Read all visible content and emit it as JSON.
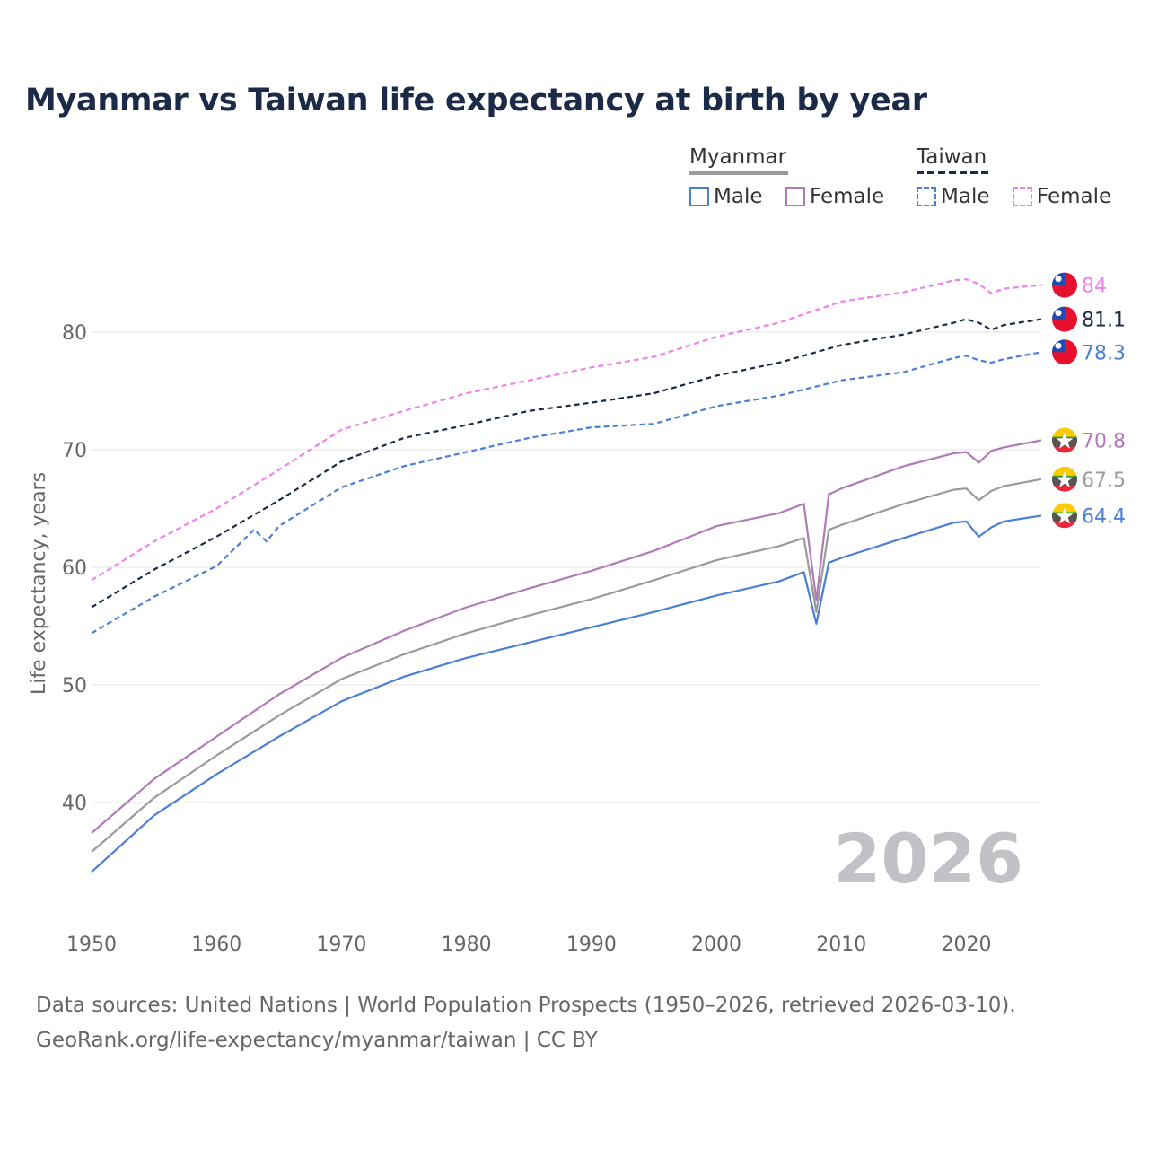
{
  "title": "Myanmar vs Taiwan life expectancy at birth by year",
  "legend": {
    "groups": [
      {
        "name": "Myanmar",
        "items": [
          "Male",
          "Female"
        ]
      },
      {
        "name": "Taiwan",
        "items": [
          "Male",
          "Female"
        ]
      }
    ]
  },
  "colors": {
    "male": "#4a7fd4",
    "female": "#b07ab8",
    "myanmar_total": "#9a9a9a",
    "taiwan_total": "#1b2a47",
    "taiwan_female": "#ee82ee",
    "year_watermark": "#c2c2c6"
  },
  "current_year": "2026",
  "source_line1": "Data sources: United Nations | World Population Prospects (1950–2026, retrieved 2026-03-10).",
  "source_line2": "GeoRank.org/life-expectancy/myanmar/taiwan | CC BY",
  "chart_data": {
    "type": "line",
    "ylabel": "Life expectancy, years",
    "xlabel": "",
    "xlim": [
      1950,
      2026
    ],
    "ylim": [
      32,
      90
    ],
    "x_ticks": [
      1950,
      1960,
      1970,
      1980,
      1990,
      2000,
      2010,
      2020
    ],
    "y_ticks": [
      40,
      50,
      60,
      70,
      80
    ],
    "series": [
      {
        "name": "Taiwan Female",
        "country": "Taiwan",
        "sex": "Female",
        "style": "dashed",
        "color": "#ee82ee",
        "label": "84",
        "flag": "taiwan",
        "points": [
          [
            1950,
            58.9
          ],
          [
            1955,
            62.2
          ],
          [
            1960,
            65.0
          ],
          [
            1965,
            68.3
          ],
          [
            1970,
            71.7
          ],
          [
            1975,
            73.3
          ],
          [
            1980,
            74.8
          ],
          [
            1985,
            75.9
          ],
          [
            1990,
            77.0
          ],
          [
            1995,
            77.9
          ],
          [
            2000,
            79.6
          ],
          [
            2005,
            80.8
          ],
          [
            2010,
            82.6
          ],
          [
            2015,
            83.4
          ],
          [
            2019,
            84.4
          ],
          [
            2020,
            84.5
          ],
          [
            2021,
            84.1
          ],
          [
            2022,
            83.3
          ],
          [
            2023,
            83.7
          ],
          [
            2026,
            84.0
          ]
        ]
      },
      {
        "name": "Taiwan Total",
        "country": "Taiwan",
        "sex": "Total",
        "style": "dashed",
        "color": "#1b2a47",
        "label": "81.1",
        "flag": "taiwan",
        "points": [
          [
            1950,
            56.6
          ],
          [
            1955,
            59.8
          ],
          [
            1960,
            62.6
          ],
          [
            1965,
            65.7
          ],
          [
            1970,
            69.0
          ],
          [
            1975,
            71.0
          ],
          [
            1980,
            72.1
          ],
          [
            1985,
            73.3
          ],
          [
            1990,
            74.0
          ],
          [
            1995,
            74.8
          ],
          [
            2000,
            76.3
          ],
          [
            2005,
            77.4
          ],
          [
            2010,
            78.9
          ],
          [
            2015,
            79.8
          ],
          [
            2019,
            80.8
          ],
          [
            2020,
            81.1
          ],
          [
            2021,
            80.8
          ],
          [
            2022,
            80.2
          ],
          [
            2023,
            80.6
          ],
          [
            2026,
            81.1
          ]
        ]
      },
      {
        "name": "Taiwan Male",
        "country": "Taiwan",
        "sex": "Male",
        "style": "dashed",
        "color": "#4a7fd4",
        "label": "78.3",
        "flag": "taiwan",
        "points": [
          [
            1950,
            54.4
          ],
          [
            1955,
            57.5
          ],
          [
            1960,
            60.1
          ],
          [
            1963,
            63.2
          ],
          [
            1964,
            62.2
          ],
          [
            1965,
            63.5
          ],
          [
            1970,
            66.8
          ],
          [
            1975,
            68.6
          ],
          [
            1980,
            69.8
          ],
          [
            1985,
            71.0
          ],
          [
            1990,
            71.9
          ],
          [
            1995,
            72.2
          ],
          [
            2000,
            73.7
          ],
          [
            2005,
            74.6
          ],
          [
            2010,
            75.9
          ],
          [
            2015,
            76.6
          ],
          [
            2019,
            77.8
          ],
          [
            2020,
            78.0
          ],
          [
            2021,
            77.6
          ],
          [
            2022,
            77.4
          ],
          [
            2023,
            77.7
          ],
          [
            2026,
            78.3
          ]
        ]
      },
      {
        "name": "Myanmar Female",
        "country": "Myanmar",
        "sex": "Female",
        "style": "solid",
        "color": "#b07ab8",
        "label": "70.8",
        "flag": "myanmar",
        "points": [
          [
            1950,
            37.4
          ],
          [
            1955,
            42.0
          ],
          [
            1960,
            45.6
          ],
          [
            1965,
            49.2
          ],
          [
            1970,
            52.3
          ],
          [
            1975,
            54.6
          ],
          [
            1980,
            56.6
          ],
          [
            1985,
            58.2
          ],
          [
            1990,
            59.7
          ],
          [
            1995,
            61.4
          ],
          [
            2000,
            63.5
          ],
          [
            2005,
            64.6
          ],
          [
            2007,
            65.4
          ],
          [
            2008,
            57.2
          ],
          [
            2009,
            66.2
          ],
          [
            2010,
            66.7
          ],
          [
            2015,
            68.6
          ],
          [
            2019,
            69.7
          ],
          [
            2020,
            69.8
          ],
          [
            2021,
            68.9
          ],
          [
            2022,
            69.9
          ],
          [
            2023,
            70.2
          ],
          [
            2026,
            70.8
          ]
        ]
      },
      {
        "name": "Myanmar Total",
        "country": "Myanmar",
        "sex": "Total",
        "style": "solid",
        "color": "#9a9a9a",
        "label": "67.5",
        "flag": "myanmar",
        "points": [
          [
            1950,
            35.8
          ],
          [
            1955,
            40.4
          ],
          [
            1960,
            44.0
          ],
          [
            1965,
            47.4
          ],
          [
            1970,
            50.5
          ],
          [
            1975,
            52.6
          ],
          [
            1980,
            54.4
          ],
          [
            1985,
            55.9
          ],
          [
            1990,
            57.3
          ],
          [
            1995,
            58.9
          ],
          [
            2000,
            60.6
          ],
          [
            2005,
            61.8
          ],
          [
            2007,
            62.5
          ],
          [
            2008,
            56.2
          ],
          [
            2009,
            63.2
          ],
          [
            2010,
            63.6
          ],
          [
            2015,
            65.4
          ],
          [
            2019,
            66.6
          ],
          [
            2020,
            66.7
          ],
          [
            2021,
            65.7
          ],
          [
            2022,
            66.5
          ],
          [
            2023,
            66.9
          ],
          [
            2026,
            67.5
          ]
        ]
      },
      {
        "name": "Myanmar Male",
        "country": "Myanmar",
        "sex": "Male",
        "style": "solid",
        "color": "#4a7fd4",
        "label": "64.4",
        "flag": "myanmar",
        "points": [
          [
            1950,
            34.1
          ],
          [
            1955,
            38.9
          ],
          [
            1960,
            42.4
          ],
          [
            1965,
            45.6
          ],
          [
            1970,
            48.6
          ],
          [
            1975,
            50.7
          ],
          [
            1980,
            52.3
          ],
          [
            1985,
            53.6
          ],
          [
            1990,
            54.9
          ],
          [
            1995,
            56.2
          ],
          [
            2000,
            57.6
          ],
          [
            2005,
            58.8
          ],
          [
            2007,
            59.6
          ],
          [
            2008,
            55.2
          ],
          [
            2009,
            60.4
          ],
          [
            2010,
            60.8
          ],
          [
            2015,
            62.5
          ],
          [
            2019,
            63.8
          ],
          [
            2020,
            63.9
          ],
          [
            2021,
            62.6
          ],
          [
            2022,
            63.4
          ],
          [
            2023,
            63.9
          ],
          [
            2026,
            64.4
          ]
        ]
      }
    ]
  }
}
